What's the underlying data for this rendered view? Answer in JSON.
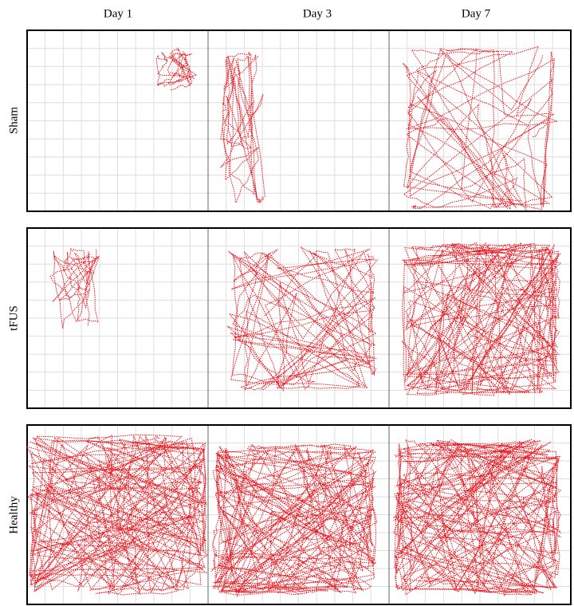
{
  "columns": [
    "Day 1",
    "Day 3",
    "Day 7"
  ],
  "rows": [
    "Sham",
    "tFUS",
    "Healthy"
  ]
}
